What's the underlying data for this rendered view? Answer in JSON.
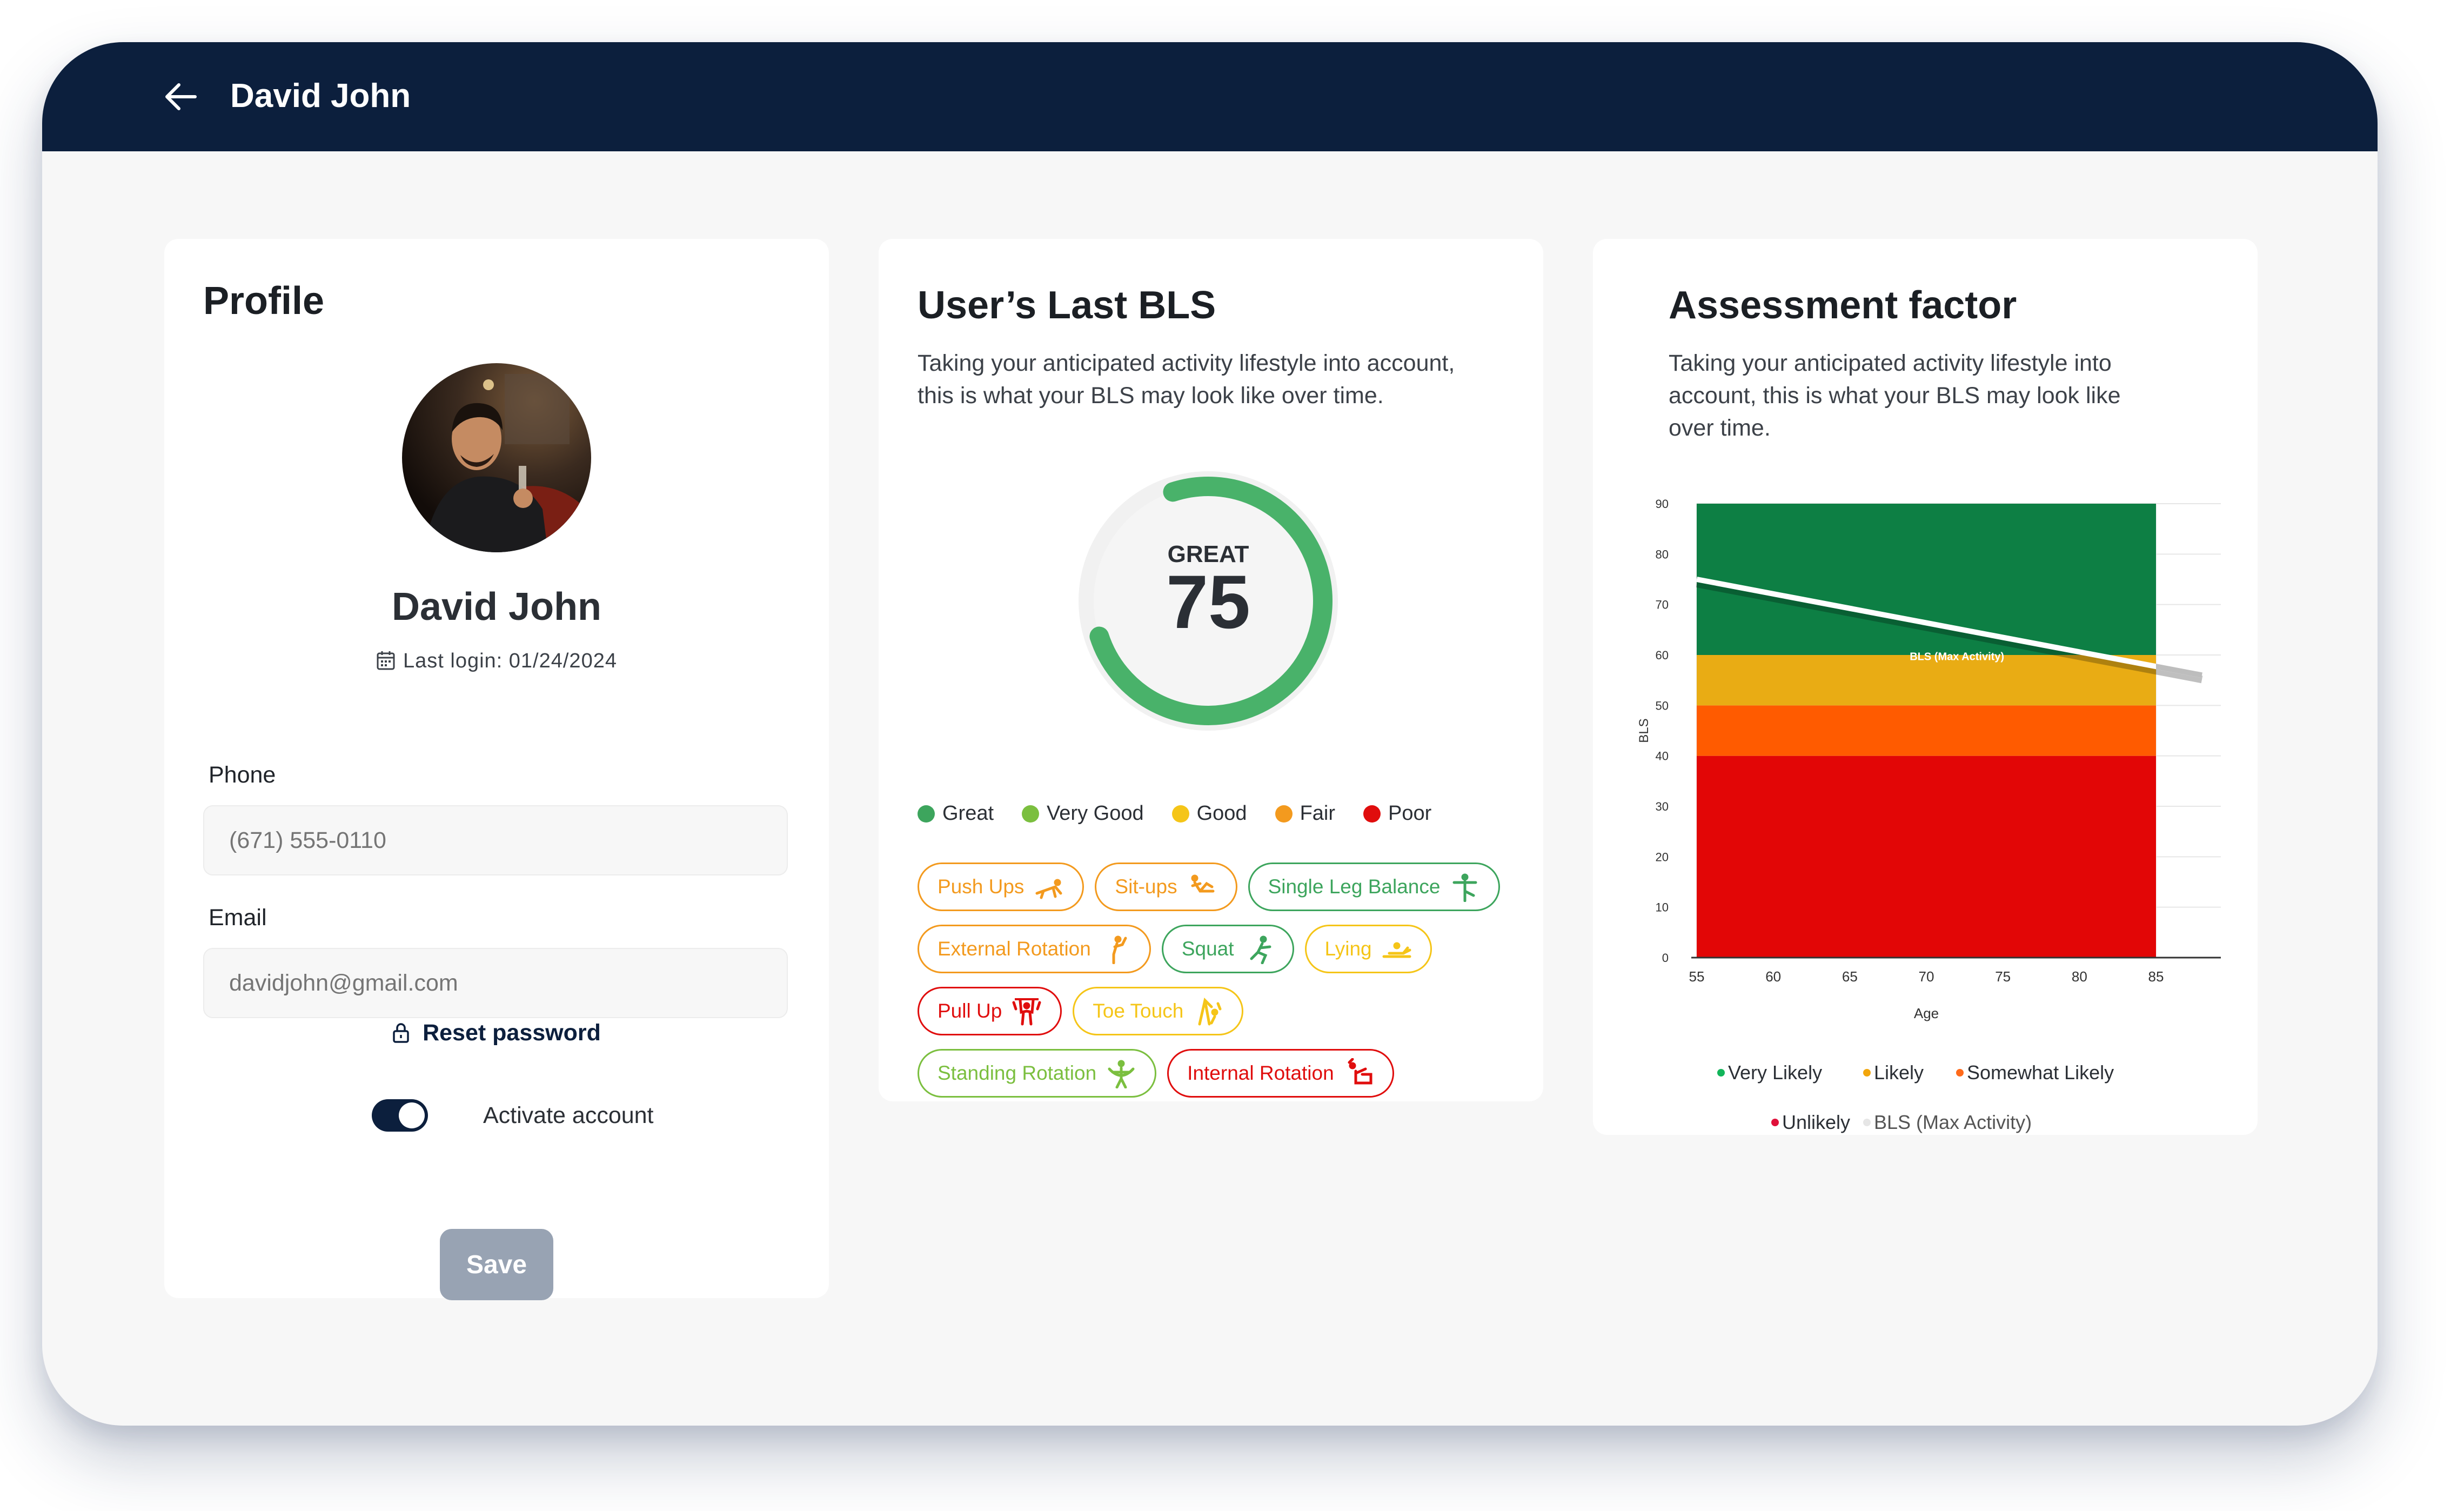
{
  "header": {
    "title": "David John"
  },
  "profile": {
    "heading": "Profile",
    "name": "David John",
    "last_login": "Last login: 01/24/2024",
    "phone_label": "Phone",
    "phone_placeholder": "(671) 555-0110",
    "email_label": "Email",
    "email_placeholder": "davidjohn@gmail.com",
    "reset_password": "Reset password",
    "activate_label": "Activate account",
    "activate_on": true,
    "save_label": "Save"
  },
  "bls": {
    "heading": "User’s Last BLS",
    "description_line1": "Taking your anticipated activity lifestyle into account,",
    "description_line2": "this is what your BLS may look like over time.",
    "score_label": "GREAT",
    "score": 75,
    "score_max": 100,
    "accent": "#49b26a",
    "legend": [
      {
        "label": "Great",
        "color": "#3da55d"
      },
      {
        "label": "Very Good",
        "color": "#7bbf3f"
      },
      {
        "label": "Good",
        "color": "#f5c518"
      },
      {
        "label": "Fair",
        "color": "#f39a1e"
      },
      {
        "label": "Poor",
        "color": "#e00d0d"
      }
    ],
    "exercise_rows": [
      [
        {
          "label": "Push Ups",
          "color": "#f39a1e",
          "icon": "push-ups-icon"
        },
        {
          "label": "Sit-ups",
          "color": "#f39a1e",
          "icon": "sit-ups-icon"
        },
        {
          "label": "Single Leg Balance",
          "color": "#3da55d",
          "icon": "balance-icon"
        }
      ],
      [
        {
          "label": "External Rotation",
          "color": "#f39a1e",
          "icon": "external-rotation-icon"
        },
        {
          "label": "Squat",
          "color": "#3da55d",
          "icon": "squat-icon"
        },
        {
          "label": "Lying",
          "color": "#f5c518",
          "icon": "lying-icon"
        }
      ],
      [
        {
          "label": "Pull Up",
          "color": "#e00d0d",
          "icon": "pull-up-icon"
        },
        {
          "label": "Toe Touch",
          "color": "#f5c518",
          "icon": "toe-touch-icon"
        }
      ],
      [
        {
          "label": "Standing Rotation",
          "color": "#7bbf3f",
          "icon": "standing-rotation-icon"
        },
        {
          "label": "Internal Rotation",
          "color": "#e00d0d",
          "icon": "internal-rotation-icon"
        }
      ]
    ]
  },
  "assessment": {
    "heading": "Assessment factor",
    "description_line1": "Taking your anticipated activity lifestyle into",
    "description_line2": "account, this is what your BLS may look like",
    "description_line3": "over time.",
    "legend": [
      {
        "label": "Very Likely",
        "color": "#12b55a"
      },
      {
        "label": "Likely",
        "color": "#f2a60c"
      },
      {
        "label": "Somewhat Likely",
        "color": "#ff6a1a"
      },
      {
        "label": "Unlikely",
        "color": "#e0103a"
      },
      {
        "label": "BLS (Max Activity)",
        "color": "#e6e6e6"
      }
    ]
  },
  "chart_data": {
    "type": "area",
    "xlabel": "Age",
    "ylabel": "BLS",
    "x_ticks": [
      55,
      60,
      65,
      70,
      75,
      80,
      85
    ],
    "y_ticks": [
      0,
      10,
      20,
      30,
      40,
      50,
      60,
      70,
      80,
      90
    ],
    "xlim": [
      55,
      85
    ],
    "ylim": [
      0,
      90
    ],
    "bands": [
      {
        "name": "Unlikely",
        "from": 0,
        "to": 40,
        "color": "#e20606"
      },
      {
        "name": "Somewhat Likely",
        "from": 40,
        "to": 50,
        "color": "#ff5b00"
      },
      {
        "name": "Likely",
        "from": 50,
        "to": 60,
        "color": "#e9ac14"
      },
      {
        "name": "Very Likely",
        "from": 60,
        "to": 90,
        "color": "#0d7f44"
      }
    ],
    "series": [
      {
        "name": "BLS (Max Activity)",
        "x": [
          55,
          88
        ],
        "y": [
          75,
          56
        ],
        "color": "#ffffff"
      }
    ],
    "annotation": "BLS (Max Activity)"
  }
}
